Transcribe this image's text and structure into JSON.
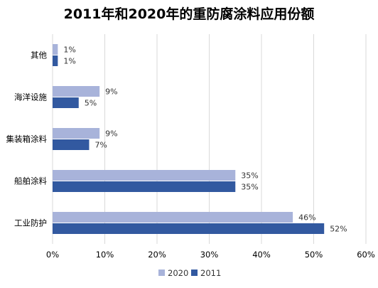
{
  "chart_data": {
    "type": "bar",
    "orientation": "horizontal",
    "title": "2011年和2020年的重防腐涂料应用份额",
    "categories": [
      "其他",
      "海洋设施",
      "集装箱涂料",
      "船舶涂料",
      "工业防护"
    ],
    "series": [
      {
        "name": "2020",
        "color": "#a8b3da",
        "values": [
          1,
          9,
          9,
          35,
          46
        ]
      },
      {
        "name": "2011",
        "color": "#3259a0",
        "values": [
          1,
          5,
          7,
          35,
          52
        ]
      }
    ],
    "value_unit": "%",
    "xlim": [
      0,
      60
    ],
    "xticks": [
      "0%",
      "10%",
      "20%",
      "30%",
      "40%",
      "50%",
      "60%"
    ],
    "grid": "vertical",
    "legend": "bottom"
  }
}
